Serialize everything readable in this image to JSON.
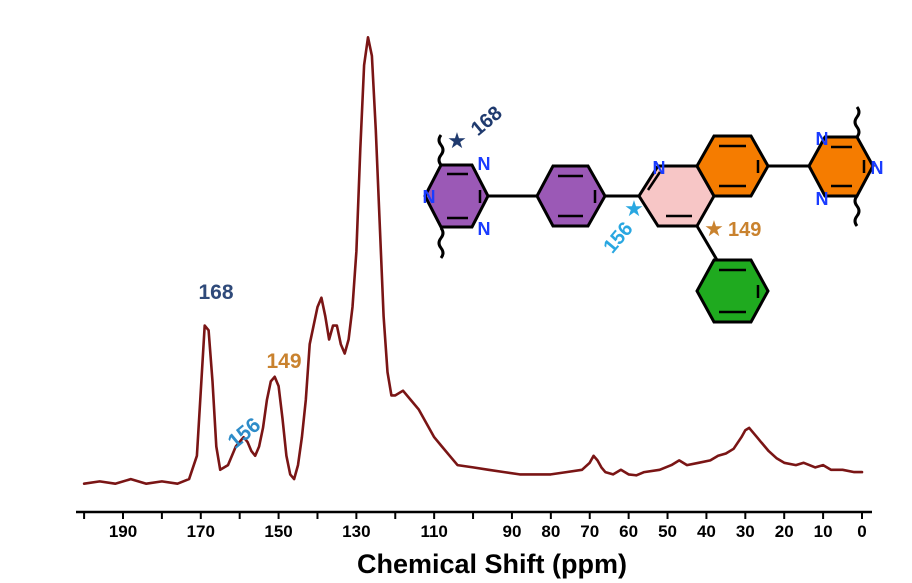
{
  "colors": {
    "spectrum": "#7a1515",
    "label_168": "#2f4a7a",
    "label_156": "#2e8cc9",
    "label_149": "#c9822e",
    "triazine_left": "#9b59b6",
    "phenyl_left": "#9b59b6",
    "pyridine_ring": "#f7c6c6",
    "fused_benzo_ring": "#f57c00",
    "triazine_right": "#f57c00",
    "phenyl_bottom": "#1faa1f",
    "nitrogen": "#1a3cff",
    "star_168": "#1f3a6e",
    "star_156": "#29a7e1",
    "star_149": "#c9822e"
  },
  "chart_data": {
    "type": "line",
    "title": "",
    "xlabel": "Chemical Shift (ppm)",
    "ylabel": "",
    "xlim": [
      200,
      0
    ],
    "x_reversed": true,
    "x_ticks": [
      190,
      170,
      150,
      130,
      110,
      90,
      80,
      70,
      60,
      50,
      40,
      30,
      20,
      10,
      0
    ],
    "x_tick_labels": [
      "190",
      "170",
      "150",
      "130",
      "110",
      "90",
      "80",
      "70",
      "60",
      "50",
      "40",
      "30",
      "20",
      "10",
      "0"
    ],
    "ylim": [
      0,
      100
    ],
    "grid": false,
    "legend": "none",
    "series": [
      {
        "x": [
          200,
          196,
          192,
          188,
          184,
          180,
          176,
          173,
          171,
          170,
          169,
          168,
          167,
          166,
          165,
          163,
          161,
          159,
          158,
          157,
          156,
          155,
          154,
          153,
          152,
          151,
          150,
          149,
          148,
          147,
          146,
          145,
          144,
          143,
          142,
          140,
          139,
          138,
          137,
          136,
          135,
          134,
          133,
          132,
          131,
          130,
          129,
          128,
          127,
          126,
          125,
          124,
          123,
          122,
          121,
          120,
          118,
          116,
          114,
          112,
          110,
          108,
          106,
          104,
          100,
          96,
          92,
          88,
          84,
          80,
          76,
          72,
          70,
          69,
          68,
          67,
          66,
          64,
          62,
          60,
          58,
          56,
          52,
          49,
          47,
          45,
          42,
          39,
          37,
          35,
          33,
          31,
          30,
          29,
          28,
          27,
          26,
          25,
          24,
          22,
          20,
          17,
          15,
          12,
          10,
          8,
          5,
          2,
          0
        ],
        "y": [
          2,
          2.5,
          2,
          3,
          2,
          2.5,
          2,
          3,
          8,
          22,
          36,
          35,
          24,
          10,
          5,
          6,
          10,
          12,
          11,
          9,
          8,
          10,
          14,
          20,
          24,
          25,
          23,
          16,
          8,
          4,
          3,
          6,
          12,
          20,
          32,
          40,
          42,
          38,
          33,
          36,
          36,
          32,
          30,
          33,
          40,
          52,
          74,
          92,
          98,
          94,
          78,
          58,
          38,
          26,
          21,
          21,
          22,
          20,
          18,
          15,
          12,
          10,
          8,
          6,
          5.5,
          5,
          4.5,
          4,
          4,
          4,
          4.5,
          5,
          6.5,
          8,
          7,
          5.5,
          4.5,
          4,
          5,
          4,
          3.8,
          4.5,
          5,
          6,
          7,
          6,
          6.5,
          7,
          8,
          8.5,
          9.5,
          12,
          13.5,
          14,
          13,
          12,
          11,
          10,
          9,
          7.5,
          6.5,
          6,
          6.5,
          5.5,
          6,
          5,
          5,
          4.5,
          4.5
        ]
      }
    ],
    "annotations": [
      {
        "text": "168",
        "color": "label_168"
      },
      {
        "text": "156",
        "color": "label_156"
      },
      {
        "text": "149",
        "color": "label_149"
      }
    ]
  },
  "molecule": {
    "star_label_168": "168",
    "star_label_156": "156",
    "star_label_149": "149",
    "star_symbol": "★",
    "n_left_1": "N",
    "n_left_2": "N",
    "n_left_3": "N",
    "n_pyridine": "N",
    "n_right_1": "N",
    "n_right_2": "N",
    "n_right_3": "N"
  }
}
